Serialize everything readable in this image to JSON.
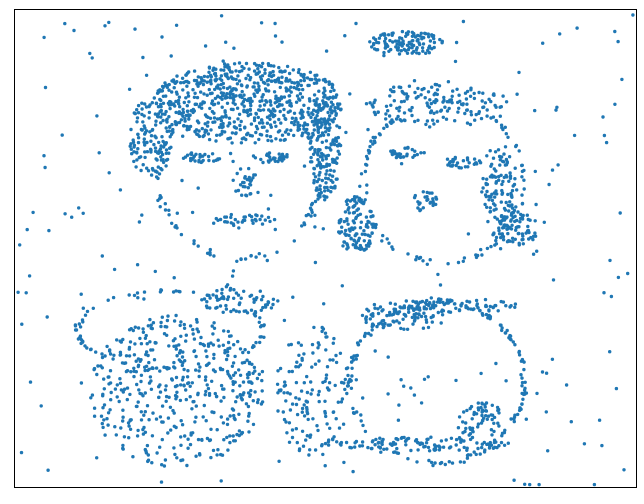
{
  "chart_data": {
    "type": "scatter",
    "title": "",
    "xlabel": "",
    "ylabel": "",
    "axis_ticks": "none",
    "grid": false,
    "legend": "none",
    "marker": "circle",
    "colors": {
      "points": "#1f77b4",
      "axes": "#000000",
      "background": "#ffffff"
    },
    "xlim": [
      0,
      1
    ],
    "ylim": [
      0,
      1
    ],
    "point_clusters": [
      {
        "name": "left-hair",
        "n": 650,
        "cx": 0.375,
        "cy": 0.805,
        "rx": 0.155,
        "ry": 0.085,
        "shape": "ellipse"
      },
      {
        "name": "left-hair-side-left",
        "n": 120,
        "cx": 0.22,
        "cy": 0.73,
        "rx": 0.035,
        "ry": 0.09,
        "shape": "ellipse"
      },
      {
        "name": "left-hair-side-right",
        "n": 160,
        "cx": 0.5,
        "cy": 0.71,
        "rx": 0.025,
        "ry": 0.11,
        "shape": "ellipse"
      },
      {
        "name": "left-face-outline",
        "n": 110,
        "cx": 0.36,
        "cy": 0.65,
        "rx": 0.13,
        "ry": 0.17,
        "shape": "ring"
      },
      {
        "name": "left-eye-l",
        "n": 30,
        "cx": 0.3,
        "cy": 0.69,
        "rx": 0.03,
        "ry": 0.012,
        "shape": "ellipse"
      },
      {
        "name": "left-eye-r",
        "n": 30,
        "cx": 0.41,
        "cy": 0.69,
        "rx": 0.03,
        "ry": 0.012,
        "shape": "ellipse"
      },
      {
        "name": "left-nose",
        "n": 30,
        "cx": 0.37,
        "cy": 0.64,
        "rx": 0.02,
        "ry": 0.03,
        "shape": "ellipse"
      },
      {
        "name": "left-mouth",
        "n": 35,
        "cx": 0.36,
        "cy": 0.56,
        "rx": 0.06,
        "ry": 0.012,
        "shape": "ellipse"
      },
      {
        "name": "right-bun",
        "n": 120,
        "cx": 0.63,
        "cy": 0.93,
        "rx": 0.06,
        "ry": 0.025,
        "shape": "ellipse"
      },
      {
        "name": "right-hair-top",
        "n": 130,
        "cx": 0.68,
        "cy": 0.8,
        "rx": 0.12,
        "ry": 0.045,
        "shape": "ellipse"
      },
      {
        "name": "right-face-outline",
        "n": 110,
        "cx": 0.69,
        "cy": 0.64,
        "rx": 0.13,
        "ry": 0.17,
        "shape": "ring"
      },
      {
        "name": "right-hair-side",
        "n": 120,
        "cx": 0.78,
        "cy": 0.62,
        "rx": 0.03,
        "ry": 0.1,
        "shape": "ellipse"
      },
      {
        "name": "right-ear",
        "n": 60,
        "cx": 0.81,
        "cy": 0.54,
        "rx": 0.035,
        "ry": 0.035,
        "shape": "ellipse"
      },
      {
        "name": "right-eye-l",
        "n": 30,
        "cx": 0.63,
        "cy": 0.7,
        "rx": 0.03,
        "ry": 0.012,
        "shape": "ellipse"
      },
      {
        "name": "right-eye-r",
        "n": 30,
        "cx": 0.72,
        "cy": 0.68,
        "rx": 0.03,
        "ry": 0.012,
        "shape": "ellipse"
      },
      {
        "name": "right-nose",
        "n": 25,
        "cx": 0.66,
        "cy": 0.6,
        "rx": 0.02,
        "ry": 0.025,
        "shape": "ellipse"
      },
      {
        "name": "hand-middle",
        "n": 110,
        "cx": 0.55,
        "cy": 0.55,
        "rx": 0.03,
        "ry": 0.06,
        "shape": "ellipse"
      },
      {
        "name": "left-body",
        "n": 450,
        "cx": 0.26,
        "cy": 0.2,
        "rx": 0.14,
        "ry": 0.16,
        "shape": "ellipse"
      },
      {
        "name": "left-shoulder-outline",
        "n": 80,
        "cx": 0.25,
        "cy": 0.33,
        "rx": 0.15,
        "ry": 0.08,
        "shape": "ring"
      },
      {
        "name": "left-collar",
        "n": 60,
        "cx": 0.36,
        "cy": 0.39,
        "rx": 0.06,
        "ry": 0.03,
        "shape": "ellipse"
      },
      {
        "name": "middle-body",
        "n": 140,
        "cx": 0.48,
        "cy": 0.2,
        "rx": 0.06,
        "ry": 0.14,
        "shape": "ellipse"
      },
      {
        "name": "right-body-outline",
        "n": 170,
        "cx": 0.68,
        "cy": 0.22,
        "rx": 0.14,
        "ry": 0.17,
        "shape": "ring"
      },
      {
        "name": "right-collar",
        "n": 90,
        "cx": 0.63,
        "cy": 0.36,
        "rx": 0.08,
        "ry": 0.03,
        "shape": "ellipse"
      },
      {
        "name": "right-shoulder-line",
        "n": 60,
        "cx": 0.72,
        "cy": 0.38,
        "rx": 0.09,
        "ry": 0.015,
        "shape": "ellipse"
      },
      {
        "name": "bottom-line",
        "n": 110,
        "cx": 0.66,
        "cy": 0.09,
        "rx": 0.14,
        "ry": 0.015,
        "shape": "ellipse"
      },
      {
        "name": "bottom-right-hand",
        "n": 60,
        "cx": 0.75,
        "cy": 0.14,
        "rx": 0.04,
        "ry": 0.04,
        "shape": "ellipse"
      },
      {
        "name": "background-scatter",
        "n": 260,
        "cx": 0.5,
        "cy": 0.5,
        "rx": 0.5,
        "ry": 0.5,
        "shape": "uniform"
      }
    ]
  }
}
